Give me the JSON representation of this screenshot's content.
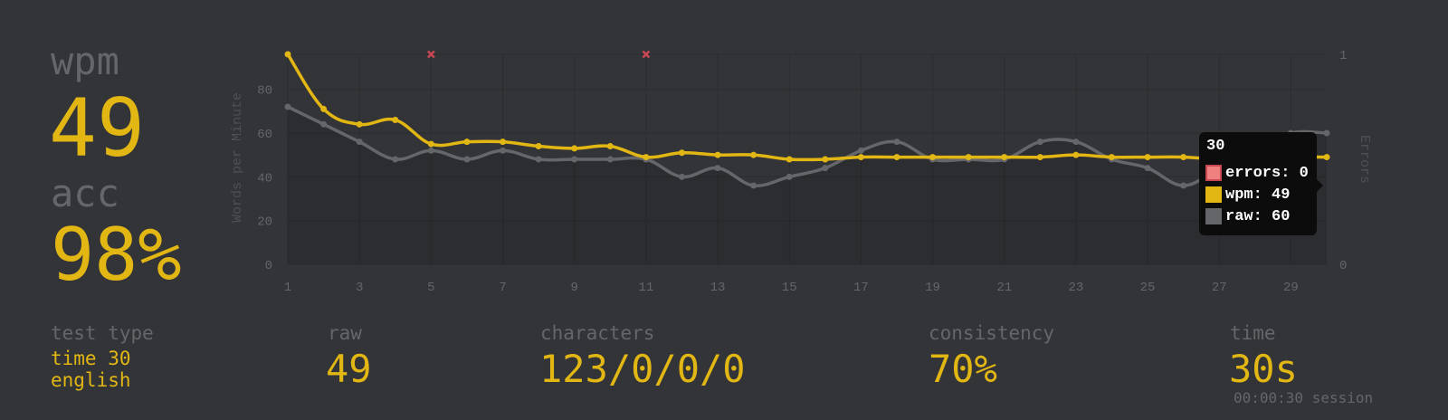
{
  "stats": {
    "wpm_label": "wpm",
    "wpm_value": "49",
    "acc_label": "acc",
    "acc_value": "98%"
  },
  "more_stats": {
    "test_type_label": "test type",
    "test_type_line1": "time 30",
    "test_type_line2": "english",
    "raw_label": "raw",
    "raw_value": "49",
    "characters_label": "characters",
    "characters_value": "123/0/0/0",
    "consistency_label": "consistency",
    "consistency_value": "70%",
    "time_label": "time",
    "time_value": "30s",
    "session": "00:00:30 session"
  },
  "tooltip": {
    "title": "30",
    "errors": "errors: 0",
    "wpm": "wpm: 49",
    "raw": "raw: 60"
  },
  "colors": {
    "background": "#323437",
    "accent": "#e2b714",
    "sub": "#646669",
    "raw_line": "#646669",
    "error": "#ca4754",
    "tooltip_error_swatch": "#f08080"
  },
  "chart_data": {
    "type": "line",
    "x": [
      1,
      2,
      3,
      4,
      5,
      6,
      7,
      8,
      9,
      10,
      11,
      12,
      13,
      14,
      15,
      16,
      17,
      18,
      19,
      20,
      21,
      22,
      23,
      24,
      25,
      26,
      27,
      28,
      29,
      30
    ],
    "x_ticks": [
      1,
      3,
      5,
      7,
      9,
      11,
      13,
      15,
      17,
      19,
      21,
      23,
      25,
      27,
      29
    ],
    "xlim": [
      1,
      30
    ],
    "ylabel": "Words per Minute",
    "ylim": [
      0,
      96
    ],
    "y_ticks": [
      0,
      20,
      40,
      60,
      80
    ],
    "y2label": "Errors",
    "y2lim": [
      0,
      1
    ],
    "y2_ticks": [
      0,
      1
    ],
    "grid": true,
    "series": [
      {
        "name": "wpm",
        "color": "#e2b714",
        "values": [
          96,
          71,
          64,
          66,
          55,
          56,
          56,
          54,
          53,
          54,
          49,
          51,
          50,
          50,
          48,
          48,
          49,
          49,
          49,
          49,
          49,
          49,
          50,
          49,
          49,
          49,
          48,
          48,
          49,
          49
        ]
      },
      {
        "name": "raw",
        "color": "#646669",
        "values": [
          72,
          64,
          56,
          48,
          52,
          48,
          52,
          48,
          48,
          48,
          48,
          40,
          44,
          36,
          40,
          44,
          52,
          56,
          48,
          48,
          48,
          56,
          56,
          48,
          44,
          36,
          44,
          52,
          60,
          60
        ]
      },
      {
        "name": "errors",
        "color": "#ca4754",
        "points": [
          {
            "x": 5,
            "y": 1
          },
          {
            "x": 11,
            "y": 1
          }
        ]
      }
    ]
  }
}
